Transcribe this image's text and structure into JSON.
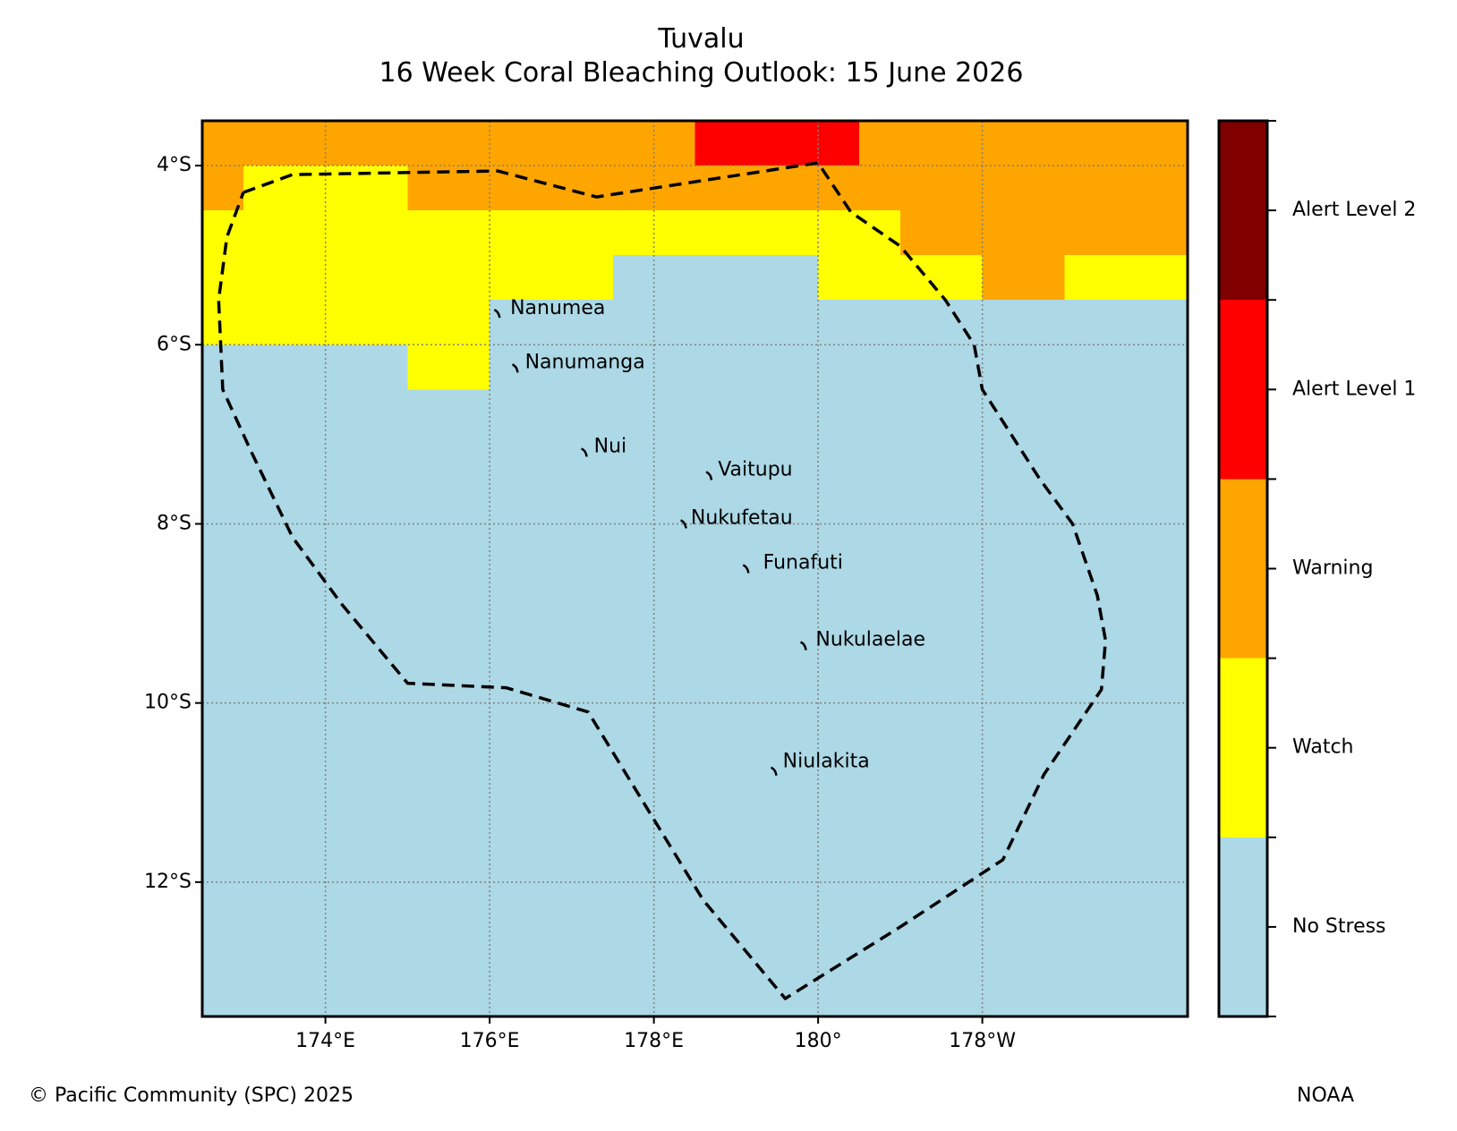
{
  "title": {
    "line1": "Tuvalu",
    "line2": "16 Week Coral Bleaching Outlook: 15 June 2026"
  },
  "map": {
    "extent": {
      "lon_min": 172.5,
      "lon_max": 184.5,
      "lat_min": -13.5,
      "lat_max": -3.5
    },
    "lat_ticks": [
      {
        "lat": -4,
        "label": "4°S"
      },
      {
        "lat": -6,
        "label": "6°S"
      },
      {
        "lat": -8,
        "label": "8°S"
      },
      {
        "lat": -10,
        "label": "10°S"
      },
      {
        "lat": -12,
        "label": "12°S"
      }
    ],
    "lon_ticks": [
      {
        "lon": 174,
        "label": "174°E"
      },
      {
        "lon": 176,
        "label": "176°E"
      },
      {
        "lon": 178,
        "label": "178°E"
      },
      {
        "lon": 180,
        "label": "180°"
      },
      {
        "lon": 182,
        "label": "178°W"
      }
    ],
    "stress_cells": [
      {
        "lon0": 172.5,
        "lon1": 184.5,
        "lat0": -13.5,
        "lat1": -3.5,
        "level": 0
      },
      {
        "lon0": 172.5,
        "lon1": 176.0,
        "lat0": -6.0,
        "lat1": -4.5,
        "level": 1
      },
      {
        "lon0": 173.0,
        "lon1": 175.0,
        "lat0": -4.5,
        "lat1": -4.0,
        "level": 1
      },
      {
        "lon0": 175.0,
        "lon1": 176.0,
        "lat0": -6.5,
        "lat1": -6.0,
        "level": 1
      },
      {
        "lon0": 176.0,
        "lon1": 177.5,
        "lat0": -5.5,
        "lat1": -4.5,
        "level": 1
      },
      {
        "lon0": 177.5,
        "lon1": 180.0,
        "lat0": -5.0,
        "lat1": -4.5,
        "level": 1
      },
      {
        "lon0": 180.0,
        "lon1": 181.0,
        "lat0": -5.5,
        "lat1": -4.5,
        "level": 1
      },
      {
        "lon0": 181.0,
        "lon1": 182.0,
        "lat0": -5.5,
        "lat1": -5.0,
        "level": 1
      },
      {
        "lon0": 183.0,
        "lon1": 184.5,
        "lat0": -5.5,
        "lat1": -5.0,
        "level": 1
      },
      {
        "lon0": 172.5,
        "lon1": 173.0,
        "lat0": -4.5,
        "lat1": -3.5,
        "level": 2
      },
      {
        "lon0": 173.0,
        "lon1": 178.5,
        "lat0": -4.0,
        "lat1": -3.5,
        "level": 2
      },
      {
        "lon0": 175.0,
        "lon1": 180.0,
        "lat0": -4.5,
        "lat1": -4.0,
        "level": 2
      },
      {
        "lon0": 180.5,
        "lon1": 184.5,
        "lat0": -4.0,
        "lat1": -3.5,
        "level": 2
      },
      {
        "lon0": 180.0,
        "lon1": 184.5,
        "lat0": -4.5,
        "lat1": -4.0,
        "level": 2
      },
      {
        "lon0": 181.0,
        "lon1": 184.5,
        "lat0": -5.0,
        "lat1": -4.5,
        "level": 2
      },
      {
        "lon0": 182.0,
        "lon1": 183.0,
        "lat0": -5.5,
        "lat1": -5.0,
        "level": 2
      },
      {
        "lon0": 178.5,
        "lon1": 180.5,
        "lat0": -4.0,
        "lat1": -3.5,
        "level": 3
      }
    ],
    "eez_boundary": [
      [
        173.0,
        -4.3
      ],
      [
        173.6,
        -4.1
      ],
      [
        176.1,
        -4.06
      ],
      [
        177.3,
        -4.35
      ],
      [
        180.0,
        -3.97
      ],
      [
        180.4,
        -4.52
      ],
      [
        181.0,
        -4.9
      ],
      [
        181.55,
        -5.5
      ],
      [
        181.9,
        -6.0
      ],
      [
        182.0,
        -6.5
      ],
      [
        182.7,
        -7.5
      ],
      [
        183.1,
        -8.0
      ],
      [
        183.4,
        -8.8
      ],
      [
        183.5,
        -9.3
      ],
      [
        183.45,
        -9.85
      ],
      [
        182.75,
        -10.8
      ],
      [
        182.25,
        -11.75
      ],
      [
        181.0,
        -12.5
      ],
      [
        179.6,
        -13.3
      ],
      [
        178.6,
        -12.2
      ],
      [
        177.2,
        -10.1
      ],
      [
        176.2,
        -9.83
      ],
      [
        175.0,
        -9.78
      ],
      [
        174.2,
        -8.9
      ],
      [
        173.6,
        -8.15
      ],
      [
        173.1,
        -7.2
      ],
      [
        172.75,
        -6.5
      ],
      [
        172.7,
        -5.5
      ],
      [
        172.8,
        -4.8
      ],
      [
        173.0,
        -4.3
      ]
    ],
    "islands": [
      {
        "name": "Nanumea",
        "lon": 176.1,
        "lat": -5.67,
        "label_lon": 176.25,
        "label_lat": -5.6
      },
      {
        "name": "Nanumanga",
        "lon": 176.32,
        "lat": -6.28,
        "label_lon": 176.43,
        "label_lat": -6.2
      },
      {
        "name": "Nui",
        "lon": 177.16,
        "lat": -7.22,
        "label_lon": 177.27,
        "label_lat": -7.14
      },
      {
        "name": "Vaitupu",
        "lon": 178.68,
        "lat": -7.48,
        "label_lon": 178.78,
        "label_lat": -7.4
      },
      {
        "name": "Nukufetau",
        "lon": 178.37,
        "lat": -8.02,
        "label_lon": 178.45,
        "label_lat": -7.94
      },
      {
        "name": "Funafuti",
        "lon": 179.13,
        "lat": -8.52,
        "label_lon": 179.33,
        "label_lat": -8.44
      },
      {
        "name": "Nukulaelae",
        "lon": 179.83,
        "lat": -9.38,
        "label_lon": 179.97,
        "label_lat": -9.3
      },
      {
        "name": "Niulakita",
        "lon": 179.47,
        "lat": -10.78,
        "label_lon": 179.57,
        "label_lat": -10.66
      }
    ]
  },
  "colorbar": {
    "levels": [
      {
        "label": "No Stress",
        "color": "#add8e6"
      },
      {
        "label": "Watch",
        "color": "#ffff00"
      },
      {
        "label": "Warning",
        "color": "#ffa500"
      },
      {
        "label": "Alert Level 1",
        "color": "#ff0000"
      },
      {
        "label": "Alert Level 2",
        "color": "#800000"
      }
    ]
  },
  "footer": {
    "credit": "© Pacific Community (SPC) 2025",
    "source": "NOAA"
  }
}
